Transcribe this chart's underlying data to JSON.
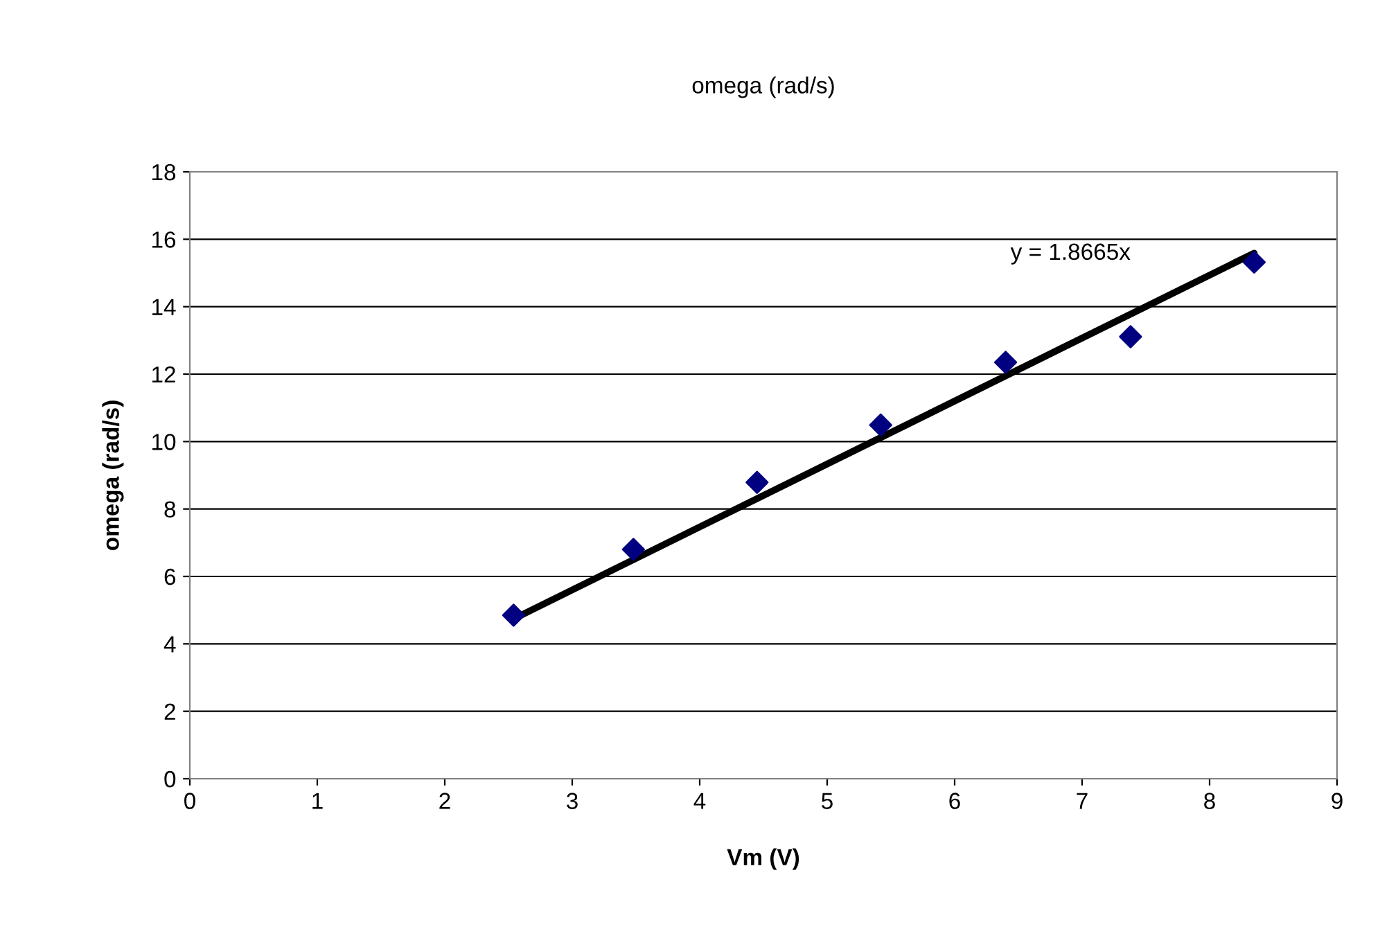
{
  "chart_data": {
    "type": "scatter",
    "title": "omega (rad/s)",
    "xlabel": "Vm (V)",
    "ylabel": "omega (rad/s)",
    "x": [
      2.54,
      3.48,
      4.45,
      5.42,
      6.4,
      7.38,
      8.35
    ],
    "series": [
      {
        "color": "#000080",
        "marker": "diamond",
        "values": [
          4.85,
          6.8,
          8.79,
          10.49,
          12.35,
          13.11,
          15.32
        ]
      },
      {
        "type": "line",
        "color": "#000000",
        "marker": "none",
        "x": [
          2.54,
          8.35
        ],
        "values": [
          4.74,
          15.59
        ]
      }
    ],
    "annotations": [
      "y = 1.8665x"
    ],
    "xlim": [
      0,
      9
    ],
    "xticks": [
      0,
      1,
      2,
      3,
      4,
      5,
      6,
      7,
      8,
      9
    ],
    "ylim": [
      0,
      18
    ],
    "yticks": [
      0,
      2,
      4,
      6,
      8,
      10,
      12,
      14,
      16,
      18
    ],
    "grid": "y",
    "legend": false
  }
}
